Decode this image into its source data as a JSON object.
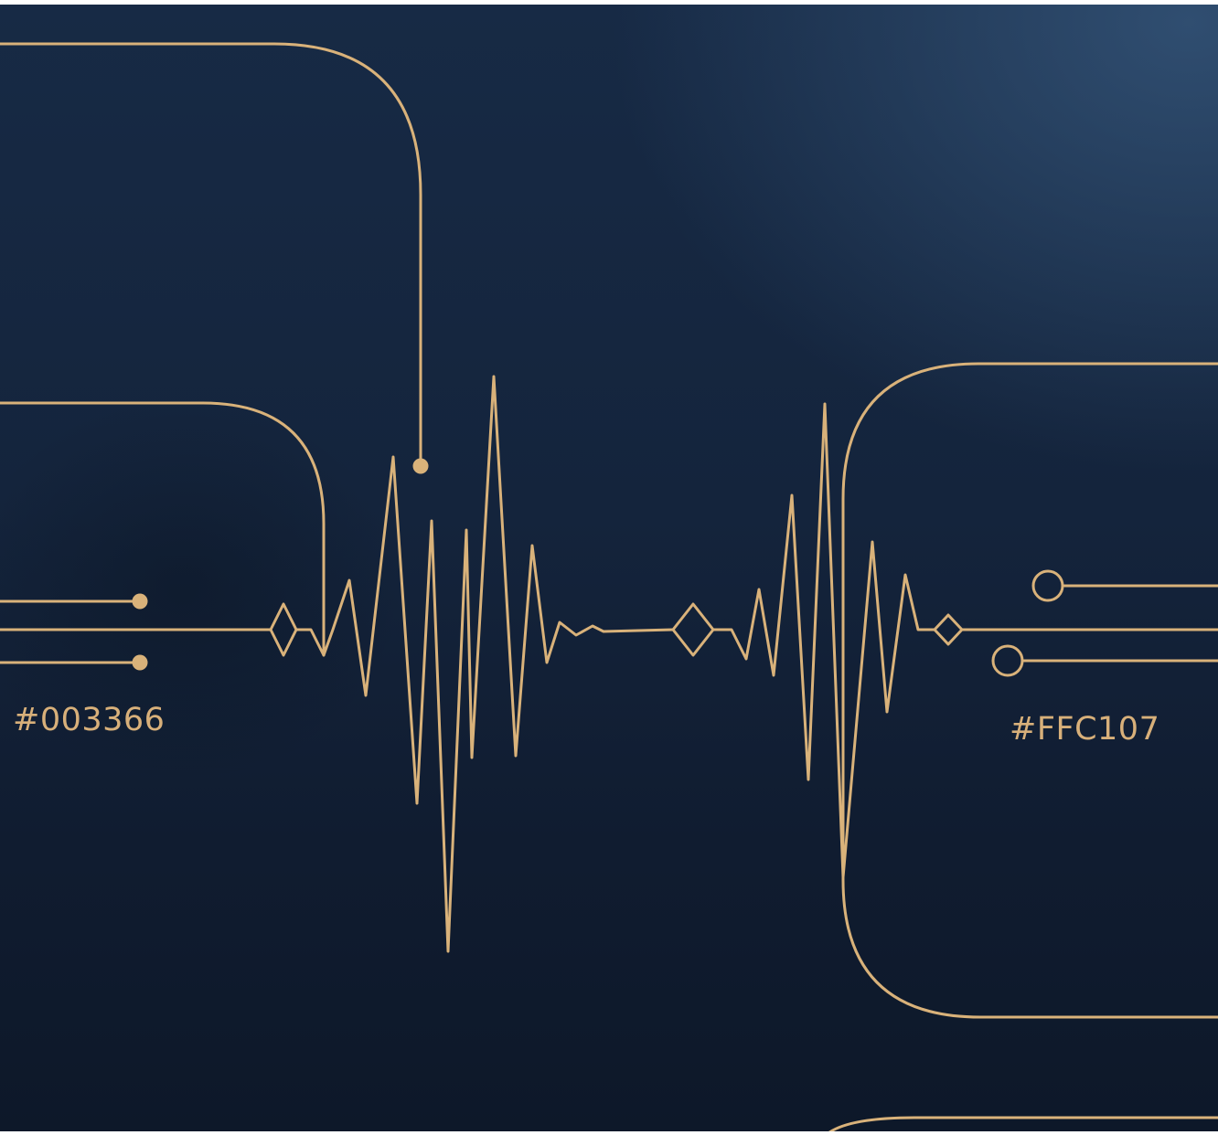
{
  "colors": {
    "background_top": "#172a45",
    "background_bottom": "#0d1829",
    "line_gold": "#d9b27a",
    "label_gold": "#d8b07a"
  },
  "labels": {
    "left_swatch_code": "#003366",
    "right_swatch_code": "#FFC107"
  },
  "icons": {
    "waveform": "heartbeat-waveform-icon",
    "diamond_nodes": "diamond-node-icon",
    "dot_terminals": "solid-dot-terminal-icon",
    "ring_terminals": "ring-terminal-icon"
  }
}
